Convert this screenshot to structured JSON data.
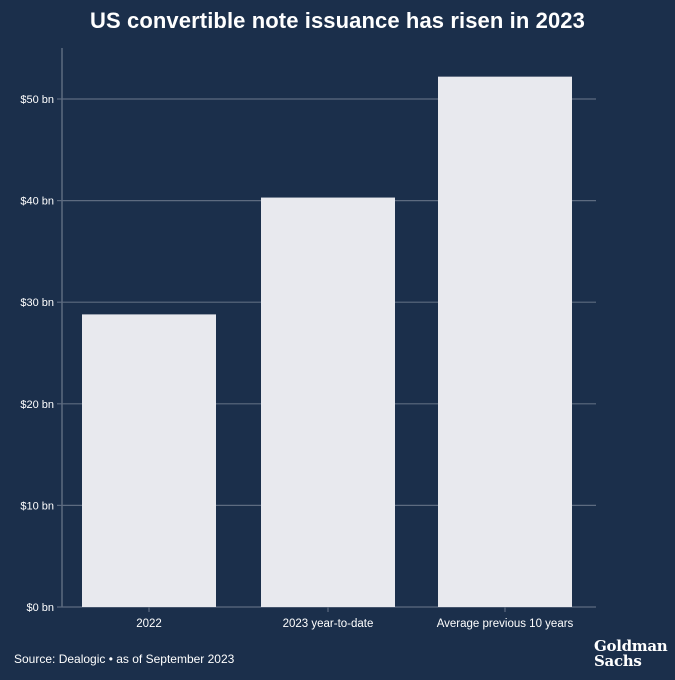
{
  "colors": {
    "background": "#1b2f4b",
    "bar": "#e8e9ee",
    "grid": "#5d6b80",
    "text": "#ffffff"
  },
  "chart_data": {
    "type": "bar",
    "title": "US convertible note issuance has risen in 2023",
    "categories": [
      "2022",
      "2023 year-to-date",
      "Average previous 10 years"
    ],
    "values": [
      28.8,
      40.3,
      52.2
    ],
    "ylim": [
      0,
      55
    ],
    "yticks": [
      0,
      10,
      20,
      30,
      40,
      50
    ],
    "ytick_labels": [
      "$0 bn",
      "$10 bn",
      "$20 bn",
      "$30 bn",
      "$40 bn",
      "$50 bn"
    ],
    "xlabel": "",
    "ylabel": "",
    "grid": true
  },
  "footer": {
    "source": "Source: Dealogic • as of September 2023",
    "logo_line1": "Goldman",
    "logo_line2": "Sachs"
  }
}
